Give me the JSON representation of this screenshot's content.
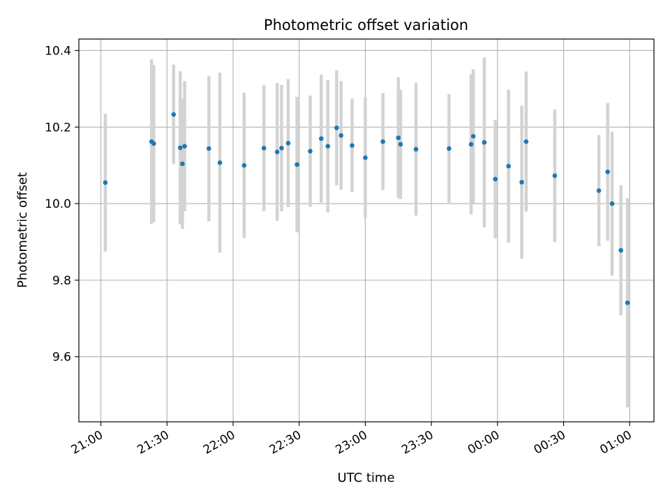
{
  "chart_data": {
    "type": "scatter",
    "title": "Photometric offset variation",
    "xlabel": "UTC time",
    "ylabel": "Photometric offset",
    "x_ticks": [
      "21:00",
      "21:30",
      "22:00",
      "22:30",
      "23:00",
      "23:30",
      "00:00",
      "00:30",
      "01:00"
    ],
    "y_ticks": [
      "9.6",
      "9.8",
      "10.0",
      "10.2",
      "10.4"
    ],
    "y_tick_values": [
      9.6,
      9.8,
      10.0,
      10.2,
      10.4
    ],
    "ylim": [
      9.43,
      10.43
    ],
    "xlim": [
      "20:50",
      "01:11"
    ],
    "grid": true,
    "marker_color": "#1f77b4",
    "errorbar_color": "#d3d3d3",
    "points": [
      {
        "time": "21:02",
        "y": 10.055,
        "err": 0.18
      },
      {
        "time": "21:23",
        "y": 10.162,
        "err": 0.215
      },
      {
        "time": "21:24",
        "y": 10.157,
        "err": 0.205
      },
      {
        "time": "21:33",
        "y": 10.233,
        "err": 0.13
      },
      {
        "time": "21:36",
        "y": 10.146,
        "err": 0.2
      },
      {
        "time": "21:37",
        "y": 10.104,
        "err": 0.17
      },
      {
        "time": "21:38",
        "y": 10.15,
        "err": 0.17
      },
      {
        "time": "21:49",
        "y": 10.144,
        "err": 0.19
      },
      {
        "time": "21:54",
        "y": 10.107,
        "err": 0.235
      },
      {
        "time": "22:05",
        "y": 10.1,
        "err": 0.19
      },
      {
        "time": "22:14",
        "y": 10.145,
        "err": 0.165
      },
      {
        "time": "22:20",
        "y": 10.135,
        "err": 0.18
      },
      {
        "time": "22:22",
        "y": 10.145,
        "err": 0.165
      },
      {
        "time": "22:25",
        "y": 10.158,
        "err": 0.167
      },
      {
        "time": "22:29",
        "y": 10.102,
        "err": 0.177
      },
      {
        "time": "22:35",
        "y": 10.137,
        "err": 0.145
      },
      {
        "time": "22:40",
        "y": 10.17,
        "err": 0.167
      },
      {
        "time": "22:43",
        "y": 10.15,
        "err": 0.173
      },
      {
        "time": "22:47",
        "y": 10.198,
        "err": 0.15
      },
      {
        "time": "22:49",
        "y": 10.178,
        "err": 0.142
      },
      {
        "time": "22:54",
        "y": 10.152,
        "err": 0.122
      },
      {
        "time": "23:00",
        "y": 10.12,
        "err": 0.158
      },
      {
        "time": "23:08",
        "y": 10.162,
        "err": 0.127
      },
      {
        "time": "23:15",
        "y": 10.172,
        "err": 0.158
      },
      {
        "time": "23:16",
        "y": 10.155,
        "err": 0.143
      },
      {
        "time": "23:23",
        "y": 10.142,
        "err": 0.173
      },
      {
        "time": "23:38",
        "y": 10.144,
        "err": 0.142
      },
      {
        "time": "23:48",
        "y": 10.155,
        "err": 0.183
      },
      {
        "time": "23:49",
        "y": 10.176,
        "err": 0.175
      },
      {
        "time": "23:54",
        "y": 10.16,
        "err": 0.222
      },
      {
        "time": "23:59",
        "y": 10.064,
        "err": 0.155
      },
      {
        "time": "00:05",
        "y": 10.098,
        "err": 0.2
      },
      {
        "time": "00:11",
        "y": 10.056,
        "err": 0.2
      },
      {
        "time": "00:13",
        "y": 10.162,
        "err": 0.183
      },
      {
        "time": "00:26",
        "y": 10.073,
        "err": 0.173
      },
      {
        "time": "00:46",
        "y": 10.034,
        "err": 0.145
      },
      {
        "time": "00:50",
        "y": 10.083,
        "err": 0.18
      },
      {
        "time": "00:52",
        "y": 10.0,
        "err": 0.188
      },
      {
        "time": "00:56",
        "y": 9.878,
        "err": 0.17
      },
      {
        "time": "00:59",
        "y": 9.741,
        "err": 0.273
      }
    ]
  }
}
